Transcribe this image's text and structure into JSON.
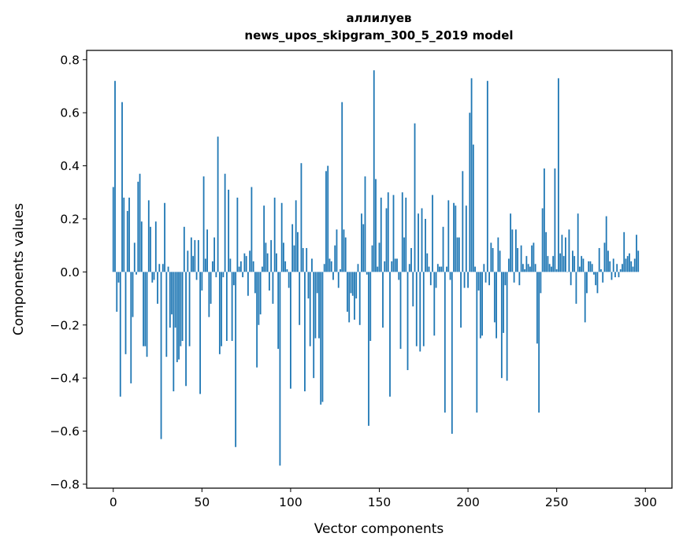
{
  "chart_data": {
    "type": "bar",
    "title": "аллилуев",
    "subtitle": "news_upos_skipgram_300_5_2019 model",
    "xlabel": "Vector components",
    "ylabel": "Components values",
    "xlim": [
      -15,
      315
    ],
    "ylim": [
      -0.815,
      0.835
    ],
    "xticks": [
      0,
      50,
      100,
      150,
      200,
      250,
      300
    ],
    "xtick_labels": [
      "0",
      "50",
      "100",
      "150",
      "200",
      "250",
      "300"
    ],
    "yticks": [
      -0.8,
      -0.6,
      -0.4,
      -0.2,
      0.0,
      0.2,
      0.4,
      0.6,
      0.8
    ],
    "ytick_labels": [
      "−0.8",
      "−0.6",
      "−0.4",
      "−0.2",
      "0.0",
      "0.2",
      "0.4",
      "0.6",
      "0.8"
    ],
    "bar_color": "#1f77b4",
    "x": "0..299",
    "values": [
      0.32,
      0.72,
      -0.15,
      -0.04,
      -0.47,
      0.64,
      0.28,
      -0.31,
      0.23,
      0.28,
      -0.42,
      -0.17,
      0.11,
      -0.01,
      0.34,
      0.37,
      0.19,
      -0.28,
      -0.28,
      -0.32,
      0.27,
      0.17,
      -0.04,
      -0.03,
      0.19,
      -0.12,
      0.03,
      -0.63,
      0.03,
      0.26,
      -0.32,
      0.02,
      -0.21,
      -0.16,
      -0.45,
      -0.21,
      -0.34,
      -0.33,
      -0.28,
      -0.26,
      0.17,
      -0.43,
      0.08,
      -0.28,
      0.13,
      0.06,
      0.12,
      -0.03,
      0.12,
      -0.46,
      -0.07,
      0.36,
      0.05,
      0.16,
      -0.17,
      -0.12,
      0.04,
      0.13,
      -0.02,
      0.51,
      -0.31,
      -0.28,
      -0.02,
      0.37,
      -0.26,
      0.31,
      0.05,
      -0.26,
      -0.05,
      -0.66,
      0.28,
      0.02,
      0.04,
      -0.02,
      0.07,
      0.06,
      -0.09,
      0.08,
      0.32,
      0.04,
      -0.08,
      -0.36,
      -0.2,
      -0.16,
      0.02,
      0.25,
      0.11,
      0.07,
      -0.07,
      0.12,
      -0.12,
      0.28,
      0.07,
      -0.29,
      -0.73,
      0.26,
      0.11,
      0.04,
      0.01,
      -0.06,
      -0.44,
      0.18,
      0.1,
      0.27,
      0.15,
      -0.2,
      0.41,
      0.09,
      -0.45,
      0.09,
      -0.1,
      -0.28,
      0.05,
      -0.4,
      -0.25,
      -0.08,
      -0.25,
      -0.5,
      -0.49,
      0.03,
      0.38,
      0.4,
      0.05,
      0.04,
      -0.03,
      0.1,
      0.16,
      -0.06,
      0.01,
      0.64,
      0.16,
      0.13,
      -0.15,
      -0.19,
      -0.08,
      -0.09,
      -0.18,
      -0.1,
      0.03,
      -0.2,
      0.22,
      0.18,
      0.36,
      -0.01,
      -0.58,
      -0.26,
      0.1,
      0.76,
      0.35,
      0.02,
      0.11,
      0.28,
      -0.21,
      0.04,
      0.24,
      0.3,
      -0.47,
      0.04,
      0.29,
      0.05,
      0.05,
      -0.03,
      -0.29,
      0.3,
      0.13,
      0.28,
      -0.37,
      0.03,
      0.09,
      -0.13,
      0.56,
      -0.28,
      0.22,
      -0.3,
      0.24,
      -0.28,
      0.2,
      0.07,
      0.02,
      -0.05,
      0.29,
      -0.24,
      -0.06,
      0.03,
      0.02,
      0.02,
      0.17,
      -0.53,
      0.02,
      0.27,
      -0.03,
      -0.61,
      0.26,
      0.25,
      0.13,
      0.13,
      -0.21,
      0.38,
      -0.06,
      0.25,
      -0.06,
      0.6,
      0.73,
      0.48,
      0.02,
      -0.53,
      -0.07,
      -0.25,
      -0.24,
      0.03,
      -0.04,
      0.72,
      -0.05,
      0.11,
      0.09,
      -0.19,
      -0.25,
      0.13,
      0.08,
      -0.4,
      -0.23,
      -0.05,
      -0.41,
      0.05,
      0.22,
      0.16,
      -0.04,
      0.16,
      0.09,
      -0.05,
      0.1,
      0.03,
      0.01,
      0.06,
      0.03,
      0.02,
      0.1,
      0.11,
      0.03,
      -0.27,
      -0.53,
      -0.08,
      0.24,
      0.39,
      0.15,
      0.06,
      0.03,
      0.02,
      0.06,
      0.39,
      0.01,
      0.73,
      0.07,
      0.14,
      0.06,
      0.13,
      0.0,
      0.16,
      -0.05,
      0.08,
      0.06,
      -0.12,
      0.22,
      0.02,
      0.06,
      0.05,
      -0.19,
      -0.08,
      0.04,
      0.04,
      0.03,
      -0.01,
      -0.05,
      -0.08,
      0.09,
      0.01,
      -0.04,
      0.11,
      0.21,
      0.08,
      0.04,
      -0.03,
      0.05,
      -0.02,
      0.03,
      -0.02,
      0.01,
      0.03,
      0.15,
      0.05,
      0.06,
      0.07,
      0.04,
      0.02,
      0.05,
      0.14,
      0.08
    ]
  }
}
